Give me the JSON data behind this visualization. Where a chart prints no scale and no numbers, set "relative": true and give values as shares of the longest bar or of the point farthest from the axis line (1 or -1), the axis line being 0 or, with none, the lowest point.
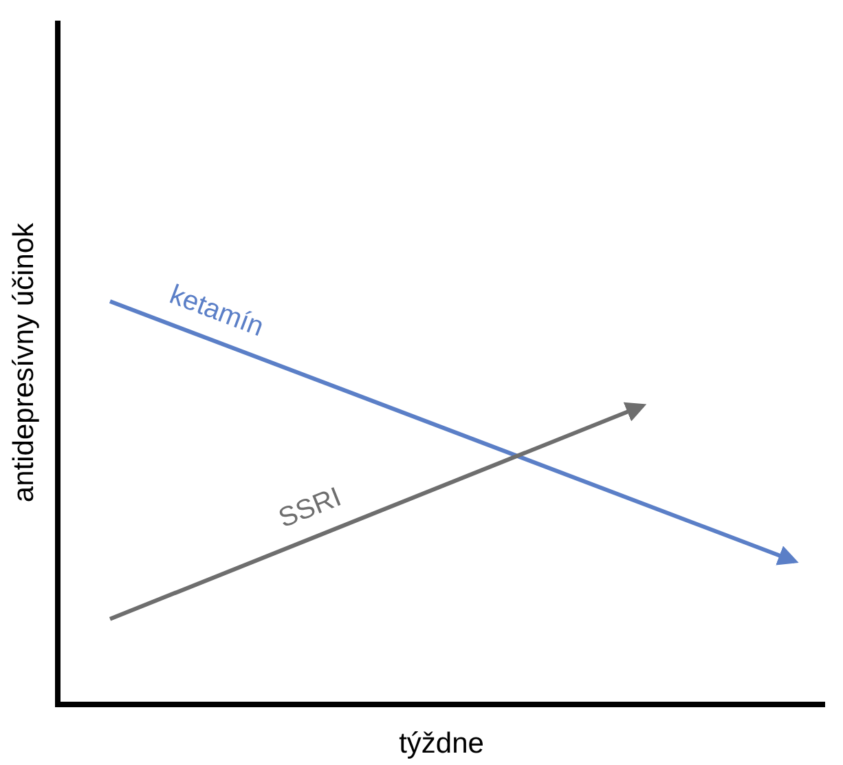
{
  "chart_data": {
    "type": "line",
    "relative": true,
    "xlabel": "týždne",
    "ylabel": "antidepresívny účinok",
    "categories": [
      null,
      null,
      null,
      null,
      null,
      null,
      null,
      null,
      null,
      null
    ],
    "marker": "none",
    "line_style": "solid",
    "series": [
      {
        "name": "ketamín",
        "color": "#5b7fc7",
        "values": [
          1,
          null,
          null,
          null,
          null,
          null,
          null,
          null,
          null,
          0.355
        ]
      },
      {
        "name": "SSRI",
        "color": "#6e6e6e",
        "values": [
          0.212,
          null,
          null,
          null,
          null,
          null,
          null,
          0.741,
          null,
          null
        ]
      }
    ]
  }
}
